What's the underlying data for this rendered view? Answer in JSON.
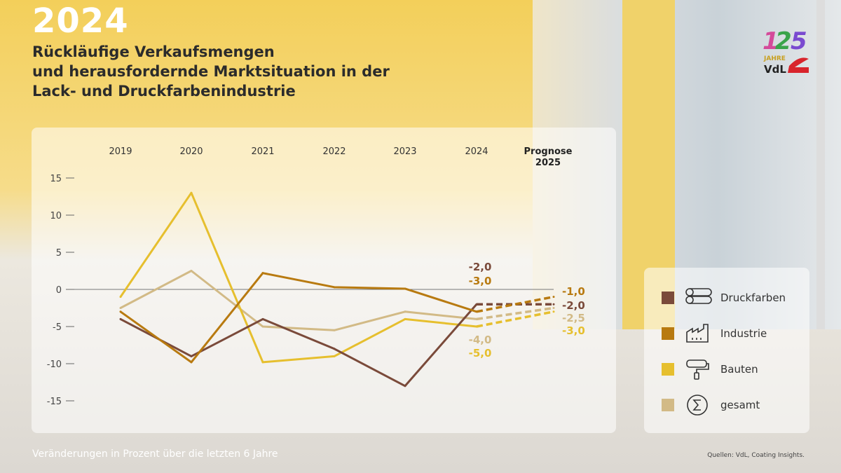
{
  "header": {
    "year": "2024",
    "subtitle_lines": [
      "Rückläufige Verkaufsmengen",
      "und herausfordernde Marktsituation in der",
      "Lack- und Druckfarbenindustrie"
    ]
  },
  "logo": {
    "text": "125 JAHRE VdL"
  },
  "footer": {
    "note": "Veränderungen in Prozent über die letzten 6 Jahre",
    "source": "Quellen: VdL, Coating Insights."
  },
  "chart_data": {
    "type": "line",
    "categories": [
      "2019",
      "2020",
      "2021",
      "2022",
      "2023",
      "2024",
      "Prognose 2025"
    ],
    "yticks": [
      15,
      10,
      5,
      0,
      -5,
      -10,
      -15
    ],
    "ylim": [
      -17,
      17
    ],
    "series": [
      {
        "name": "Druckfarben",
        "color": "#7a4a3a",
        "icon": "printing-rollers-icon",
        "values": [
          -4,
          -9,
          -4,
          -8,
          -13,
          -2,
          -2
        ],
        "labels2024": "-2,0",
        "labels2025": "-2,0"
      },
      {
        "name": "Industrie",
        "color": "#b87a10",
        "icon": "factory-icon",
        "values": [
          -3,
          -9.8,
          2.2,
          0.3,
          0.1,
          -3,
          -1
        ],
        "labels2024": "-3,0",
        "labels2025": "-1,0"
      },
      {
        "name": "Bauten",
        "color": "#e6bf2e",
        "icon": "paint-roller-icon",
        "values": [
          -1,
          13,
          -9.8,
          -9,
          -4,
          -5,
          -3
        ],
        "labels2024": "-5,0",
        "labels2025": "-3,0"
      },
      {
        "name": "gesamt",
        "color": "#d2ba86",
        "icon": "sigma-icon",
        "values": [
          -2.5,
          2.5,
          -5,
          -5.5,
          -3,
          -4,
          -2.5
        ],
        "labels2024": "-4,0",
        "labels2025": "-2,5"
      }
    ],
    "forecast_dashed": true,
    "legend": "right"
  }
}
